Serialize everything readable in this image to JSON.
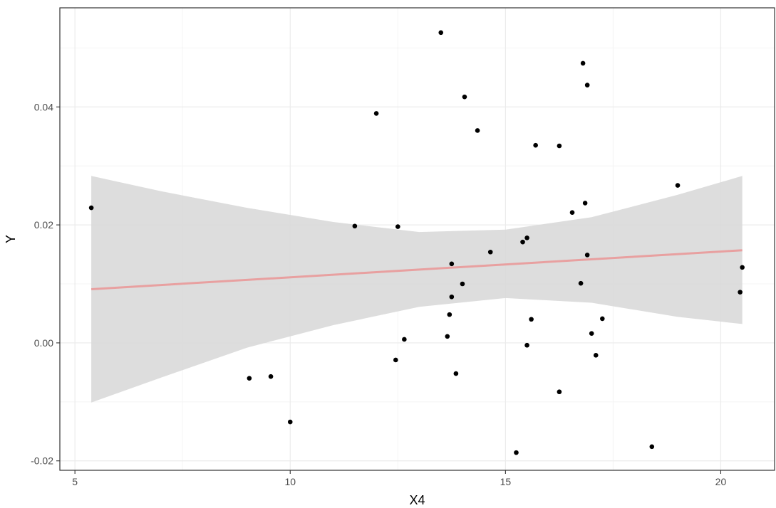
{
  "chart_data": {
    "type": "scatter",
    "xlabel": "X4",
    "ylabel": "Y",
    "xlim": [
      4.65,
      21.25
    ],
    "ylim": [
      -0.0216,
      0.0568
    ],
    "grid": true,
    "x_major_ticks": [
      5,
      10,
      15,
      20
    ],
    "x_tick_labels": [
      "5",
      "10",
      "15",
      "20"
    ],
    "x_minor_ticks": [
      7.5,
      12.5,
      17.5
    ],
    "y_major_ticks": [
      -0.02,
      0.0,
      0.02,
      0.04
    ],
    "y_tick_labels": [
      "-0.02",
      "0.00",
      "0.02",
      "0.04"
    ],
    "y_minor_ticks": [
      -0.01,
      0.01,
      0.03,
      0.05
    ],
    "points": [
      {
        "x": 5.38,
        "y": 0.0229
      },
      {
        "x": 9.05,
        "y": -0.006
      },
      {
        "x": 9.55,
        "y": -0.0057
      },
      {
        "x": 10.0,
        "y": -0.0134
      },
      {
        "x": 11.5,
        "y": 0.0198
      },
      {
        "x": 12.0,
        "y": 0.0389
      },
      {
        "x": 12.45,
        "y": -0.0029
      },
      {
        "x": 12.5,
        "y": 0.0197
      },
      {
        "x": 12.65,
        "y": 0.0006
      },
      {
        "x": 13.5,
        "y": 0.0526
      },
      {
        "x": 13.65,
        "y": 0.0011
      },
      {
        "x": 13.7,
        "y": 0.0048
      },
      {
        "x": 13.75,
        "y": 0.0134
      },
      {
        "x": 13.75,
        "y": 0.0078
      },
      {
        "x": 13.85,
        "y": -0.0052
      },
      {
        "x": 14.0,
        "y": 0.01
      },
      {
        "x": 14.05,
        "y": 0.0417
      },
      {
        "x": 14.35,
        "y": 0.036
      },
      {
        "x": 14.65,
        "y": 0.0154
      },
      {
        "x": 15.25,
        "y": -0.0186
      },
      {
        "x": 15.4,
        "y": 0.0171
      },
      {
        "x": 15.5,
        "y": 0.0178
      },
      {
        "x": 15.5,
        "y": -0.0004
      },
      {
        "x": 15.6,
        "y": 0.004
      },
      {
        "x": 15.7,
        "y": 0.0335
      },
      {
        "x": 16.25,
        "y": 0.0334
      },
      {
        "x": 16.25,
        "y": -0.0083
      },
      {
        "x": 16.55,
        "y": 0.0221
      },
      {
        "x": 16.75,
        "y": 0.0101
      },
      {
        "x": 16.8,
        "y": 0.0474
      },
      {
        "x": 16.85,
        "y": 0.0237
      },
      {
        "x": 16.9,
        "y": 0.0437
      },
      {
        "x": 16.9,
        "y": 0.0149
      },
      {
        "x": 17.0,
        "y": 0.0016
      },
      {
        "x": 17.1,
        "y": -0.0021
      },
      {
        "x": 17.25,
        "y": 0.0041
      },
      {
        "x": 18.4,
        "y": -0.0176
      },
      {
        "x": 19.0,
        "y": 0.0267
      },
      {
        "x": 20.45,
        "y": 0.0086
      },
      {
        "x": 20.5,
        "y": 0.0128
      }
    ],
    "fit_line": {
      "x": [
        5.38,
        20.5
      ],
      "y": [
        0.0091,
        0.0157
      ],
      "color": "#e8a0a0"
    },
    "confidence_band": {
      "x": [
        5.38,
        7.0,
        9.0,
        11.0,
        13.0,
        15.0,
        17.0,
        19.0,
        20.5
      ],
      "upper": [
        0.0283,
        0.0257,
        0.0229,
        0.0205,
        0.0188,
        0.0192,
        0.0213,
        0.0251,
        0.0283
      ],
      "lower": [
        -0.0101,
        -0.0059,
        -0.0008,
        0.003,
        0.0061,
        0.0076,
        0.0068,
        0.0044,
        0.0032
      ],
      "color": "#d9d9d9"
    },
    "colors": {
      "point": "#000000",
      "panel_border": "#333333",
      "grid_major": "#ebebeb",
      "grid_minor": "#f4f4f4"
    }
  }
}
